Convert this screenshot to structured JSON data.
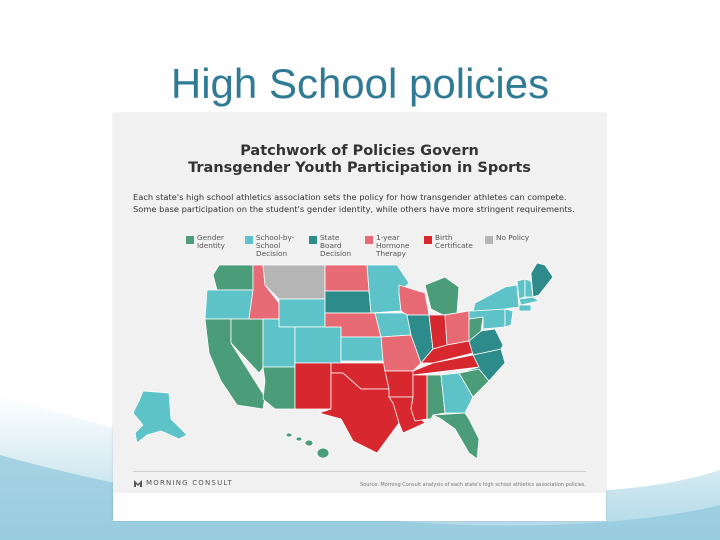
{
  "slide": {
    "title": "High School policies"
  },
  "infographic": {
    "title_line1": "Patchwork of Policies Govern",
    "title_line2": "Transgender Youth Participation in Sports",
    "description_line1": "Each state's high school athletics association sets the policy for how transgender athletes can compete.",
    "description_line2": "Some base participation on the student's gender identity, while others have more stringent requirements.",
    "legend": [
      {
        "label_line1": "Gender",
        "label_line2": "Identity",
        "label_line3": "",
        "color": "#4a9d78"
      },
      {
        "label_line1": "School-by-",
        "label_line2": "School",
        "label_line3": "Decision",
        "color": "#5ec3c8"
      },
      {
        "label_line1": "State",
        "label_line2": "Board",
        "label_line3": "Decision",
        "color": "#2e8b8b"
      },
      {
        "label_line1": "1-year",
        "label_line2": "Hormone",
        "label_line3": "Therapy",
        "color": "#e86a74"
      },
      {
        "label_line1": "Birth",
        "label_line2": "Certificate",
        "label_line3": "",
        "color": "#d6282e"
      },
      {
        "label_line1": "No Policy",
        "label_line2": "",
        "label_line3": "",
        "color": "#b5b5b5"
      }
    ],
    "brand": "MORNING CONSULT",
    "source": "Source: Morning Consult analysis of each state's high school athletics association policies."
  }
}
